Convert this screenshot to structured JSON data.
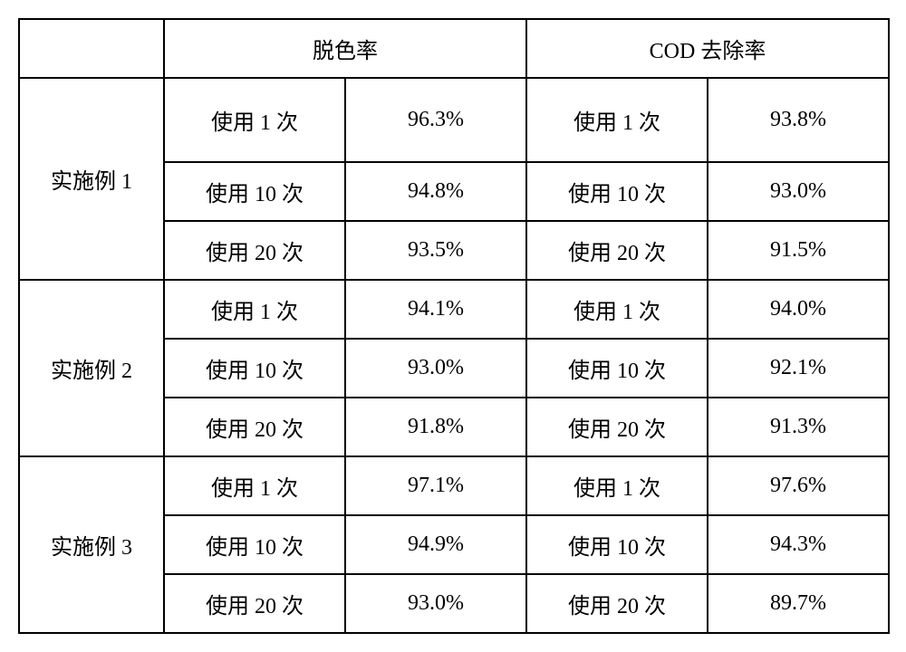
{
  "header": {
    "col1": "",
    "col_decolor": "脱色率",
    "col_cod": "COD 去除率"
  },
  "groups": [
    {
      "name": "实施例 1",
      "rows": [
        {
          "decolor_use": "使用 1 次",
          "decolor_val": "96.3%",
          "cod_use": "使用 1 次",
          "cod_val": "93.8%"
        },
        {
          "decolor_use": "使用 10 次",
          "decolor_val": "94.8%",
          "cod_use": "使用 10 次",
          "cod_val": "93.0%"
        },
        {
          "decolor_use": "使用 20 次",
          "decolor_val": "93.5%",
          "cod_use": "使用 20 次",
          "cod_val": "91.5%"
        }
      ]
    },
    {
      "name": "实施例 2",
      "rows": [
        {
          "decolor_use": "使用 1 次",
          "decolor_val": "94.1%",
          "cod_use": "使用 1 次",
          "cod_val": "94.0%"
        },
        {
          "decolor_use": "使用 10 次",
          "decolor_val": "93.0%",
          "cod_use": "使用 10 次",
          "cod_val": "92.1%"
        },
        {
          "decolor_use": "使用 20 次",
          "decolor_val": "91.8%",
          "cod_use": "使用 20 次",
          "cod_val": "91.3%"
        }
      ]
    },
    {
      "name": "实施例 3",
      "rows": [
        {
          "decolor_use": "使用 1 次",
          "decolor_val": "97.1%",
          "cod_use": "使用 1 次",
          "cod_val": "97.6%"
        },
        {
          "decolor_use": "使用 10 次",
          "decolor_val": "94.9%",
          "cod_use": "使用 10 次",
          "cod_val": "94.3%"
        },
        {
          "decolor_use": "使用 20 次",
          "decolor_val": "93.0%",
          "cod_use": "使用 20 次",
          "cod_val": "89.7%"
        }
      ]
    }
  ],
  "style": {
    "border_color": "#000000",
    "background_color": "#ffffff",
    "font_size_pt": 24
  }
}
